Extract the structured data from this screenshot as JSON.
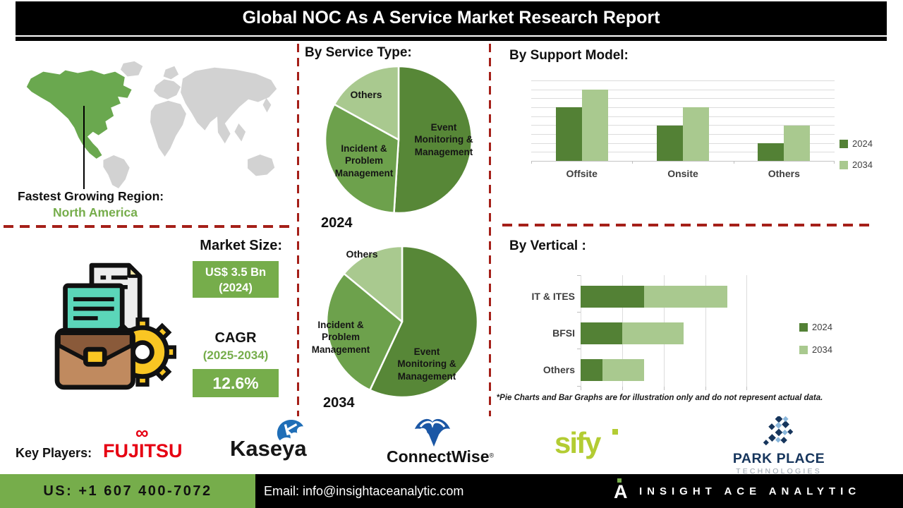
{
  "title": "Global NOC As A Service Market Research Report",
  "region": {
    "heading": "Fastest Growing Region:",
    "value": "North America"
  },
  "market": {
    "heading": "Market Size:",
    "size_value": "US$ 3.5 Bn",
    "size_year": "(2024)",
    "cagr_label": "CAGR",
    "cagr_period": "(2025-2034)",
    "cagr_value": "12.6%"
  },
  "key_players": {
    "label": "Key Players:",
    "fujitsu": "FUJITSU",
    "fujitsu_mark": "∞",
    "kaseya": "Kaseya",
    "connectwise": "ConnectWise",
    "connectwise_reg": "®",
    "sify": "sify",
    "park_place_line1": "PARK PLACE",
    "park_place_line2": "TECHNOLOGIES"
  },
  "footer": {
    "phone": "US: +1 607 400-7072",
    "email": "Email: info@insightaceanalytic.com",
    "brand": "INSIGHT ACE ANALYTIC",
    "brand_mark": "A"
  },
  "colors": {
    "accent_green": "#76ad4b",
    "dark_green": "#538135",
    "medium_green": "#6da14c",
    "light_green": "#a9c98f",
    "dashed_red": "#a52019",
    "map_green": "#6aa84f",
    "map_gray": "#d2d2d2",
    "fujitsu_red": "#e60012",
    "kaseya_blue": "#1f6eb7",
    "connectwise_blue": "#1b57a5",
    "sify_lime": "#b3cc33",
    "parkplace_navy": "#16355c"
  },
  "chart_data": [
    {
      "id": "pie_2024",
      "type": "pie",
      "title": "By Service Type:",
      "year_label": "2024",
      "legend_position": "none",
      "segments": [
        {
          "label": "Event Monitoring & Management",
          "value": 51,
          "color": "#578737"
        },
        {
          "label": "Incident & Problem Management",
          "value": 32,
          "color": "#6da14c"
        },
        {
          "label": "Others",
          "value": 17,
          "color": "#a9c98f"
        }
      ]
    },
    {
      "id": "pie_2034",
      "type": "pie",
      "title": "By Service Type:",
      "year_label": "2034",
      "legend_position": "none",
      "segments": [
        {
          "label": "Event Monitoring & Management",
          "value": 57,
          "color": "#578737"
        },
        {
          "label": "Incident & Problem Management",
          "value": 29,
          "color": "#6da14c"
        },
        {
          "label": "Others",
          "value": 14,
          "color": "#a9c98f"
        }
      ]
    },
    {
      "id": "support_model",
      "type": "bar",
      "title": "By Support Model:",
      "categories": [
        "Offsite",
        "Onsite",
        "Others"
      ],
      "ylim": [
        0,
        100
      ],
      "grid": true,
      "legend_position": "right",
      "series": [
        {
          "name": "2024",
          "color": "#538135",
          "values": [
            67,
            44,
            22
          ]
        },
        {
          "name": "2034",
          "color": "#a9c98f",
          "values": [
            89,
            67,
            44
          ]
        }
      ]
    },
    {
      "id": "by_vertical",
      "type": "bar",
      "subtype": "stacked-horizontal",
      "title": "By Vertical :",
      "categories": [
        "IT & ITES",
        "BFSI",
        "Others"
      ],
      "xlim": [
        0,
        100
      ],
      "grid": true,
      "legend_position": "right",
      "series": [
        {
          "name": "2024",
          "color": "#538135",
          "values": [
            38,
            25,
            13
          ]
        },
        {
          "name": "2034",
          "color": "#a9c98f",
          "values": [
            50,
            37,
            25
          ]
        }
      ],
      "footnote": "*Pie Charts and Bar Graphs are for illustration only and do not represent actual data."
    }
  ]
}
